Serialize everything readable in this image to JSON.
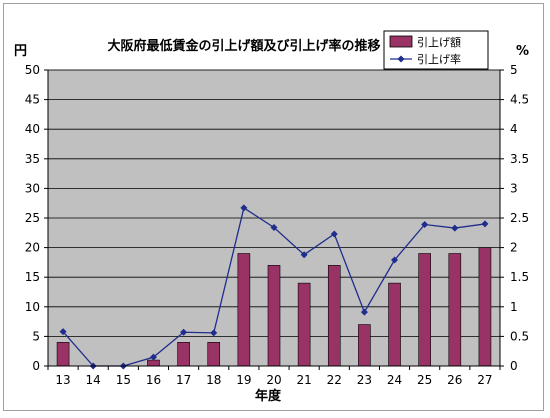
{
  "chart_data": {
    "type": "bar",
    "title": "大阪府最低賃金の引上げ額及び引上げ率の推移",
    "xlabel": "年度",
    "ylabel_left": "円",
    "ylabel_right": "%",
    "categories": [
      "13",
      "14",
      "15",
      "16",
      "17",
      "18",
      "19",
      "20",
      "21",
      "22",
      "23",
      "24",
      "25",
      "26",
      "27"
    ],
    "ylim_left": [
      0,
      50
    ],
    "ylim_right": [
      0,
      5
    ],
    "yticks_left": [
      "0",
      "5",
      "10",
      "15",
      "20",
      "25",
      "30",
      "35",
      "40",
      "45",
      "50"
    ],
    "yticks_right": [
      "0",
      "0.5",
      "1",
      "1.5",
      "2",
      "2.5",
      "3",
      "3.5",
      "4",
      "4.5",
      "5"
    ],
    "series": [
      {
        "name": "引上げ額",
        "type": "bar",
        "axis": "left",
        "color": "#993366",
        "values": [
          4,
          0,
          0,
          1,
          4,
          4,
          19,
          17,
          14,
          17,
          7,
          14,
          19,
          19,
          20
        ]
      },
      {
        "name": "引上げ率",
        "type": "line",
        "axis": "right",
        "color": "#1f2d8c",
        "marker": "diamond",
        "values": [
          0.58,
          0.0,
          0.0,
          0.15,
          0.57,
          0.56,
          2.67,
          2.34,
          1.88,
          2.23,
          0.91,
          1.79,
          2.39,
          2.33,
          2.4
        ]
      }
    ],
    "plot_background": "#c0c0c0",
    "grid": true,
    "legend_position": "top-right"
  }
}
